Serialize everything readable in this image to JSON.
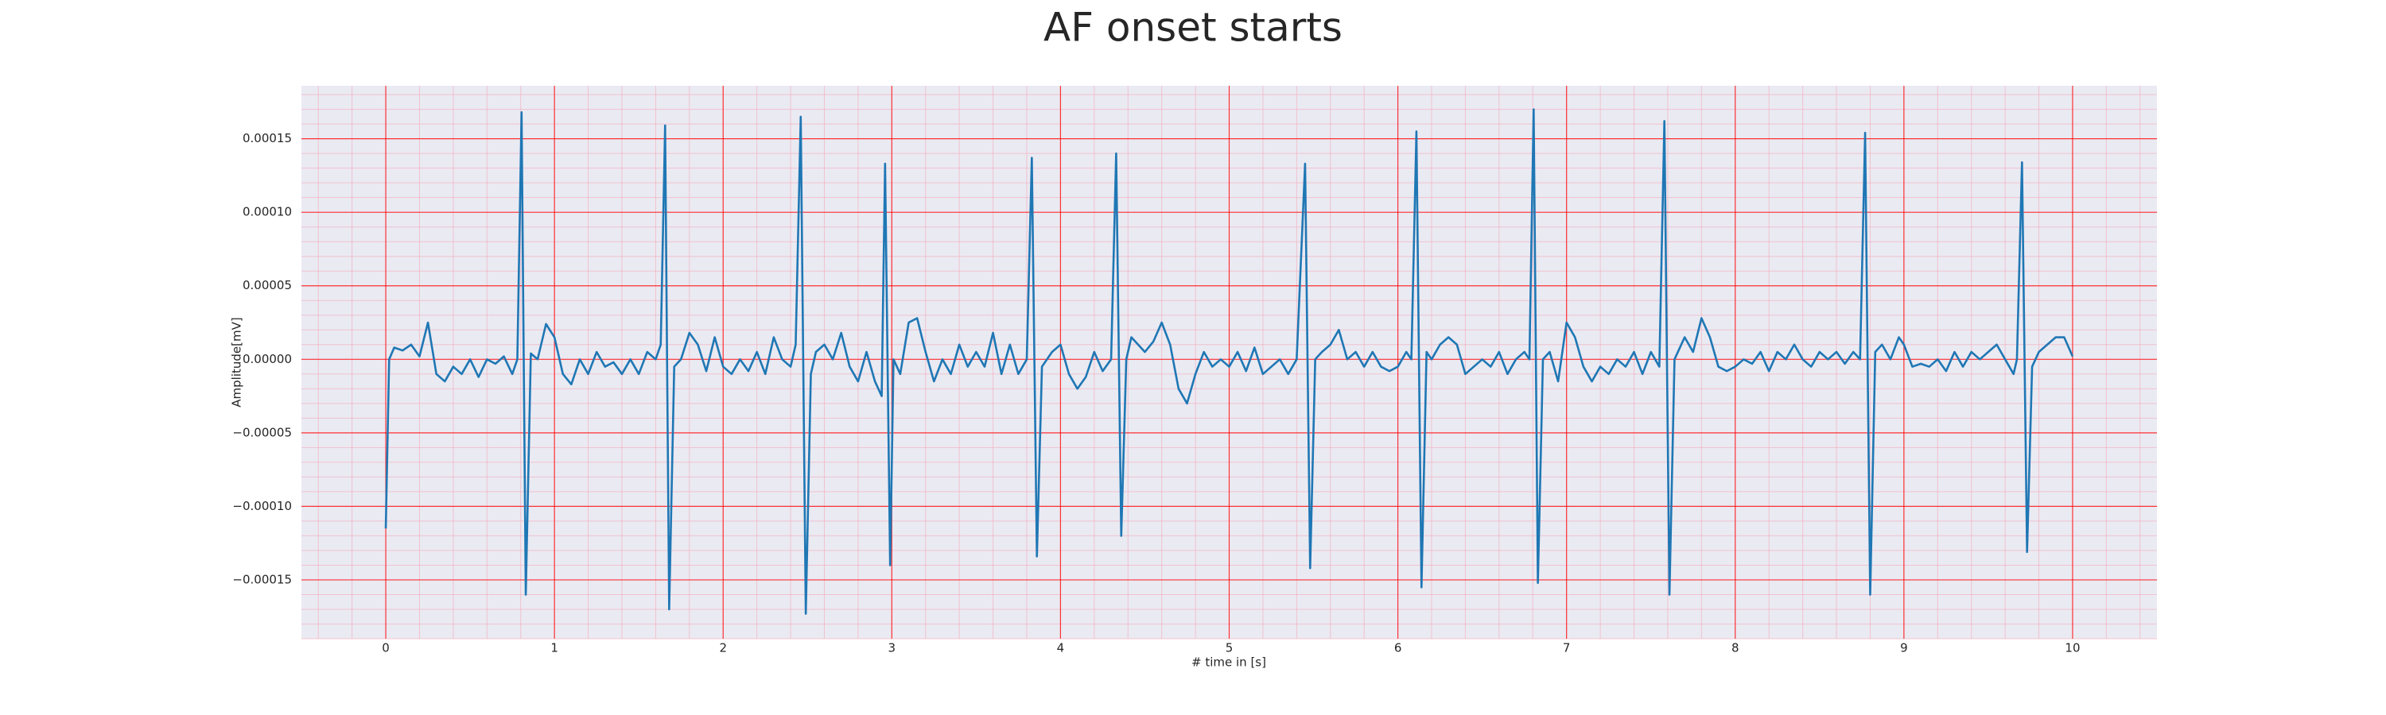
{
  "chart_data": {
    "type": "line",
    "title": "AF onset starts",
    "xlabel": "# time in [s]",
    "ylabel": "Amplitude[mV]",
    "xlim": [
      -0.5,
      10.5
    ],
    "ylim": [
      -0.00019,
      0.000186
    ],
    "xticks": [
      0,
      1,
      2,
      3,
      4,
      5,
      6,
      7,
      8,
      9,
      10
    ],
    "yticks": [
      {
        "value": -0.00015,
        "label": "−0.00015"
      },
      {
        "value": -0.0001,
        "label": "−0.00010"
      },
      {
        "value": -5e-05,
        "label": "−0.00005"
      },
      {
        "value": 0,
        "label": "0.00000"
      },
      {
        "value": 5e-05,
        "label": "0.00005"
      },
      {
        "value": 0.0001,
        "label": "0.00010"
      },
      {
        "value": 0.00015,
        "label": "0.00015"
      }
    ],
    "grid": true,
    "grid_color": "#ff0000",
    "minor_grid": true,
    "minor_grid_color": "#f4a6b8",
    "background": "#eaeaf2",
    "x": [
      0,
      0.02,
      0.05,
      0.1,
      0.15,
      0.2,
      0.25,
      0.3,
      0.35,
      0.4,
      0.45,
      0.5,
      0.55,
      0.6,
      0.65,
      0.7,
      0.75,
      0.78,
      0.805,
      0.83,
      0.86,
      0.9,
      0.95,
      1.0,
      1.05,
      1.1,
      1.15,
      1.2,
      1.25,
      1.3,
      1.35,
      1.4,
      1.45,
      1.5,
      1.55,
      1.6,
      1.63,
      1.656,
      1.68,
      1.71,
      1.75,
      1.8,
      1.85,
      1.9,
      1.95,
      2.0,
      2.05,
      2.1,
      2.15,
      2.2,
      2.25,
      2.3,
      2.35,
      2.4,
      2.43,
      2.46,
      2.49,
      2.52,
      2.55,
      2.6,
      2.65,
      2.7,
      2.75,
      2.8,
      2.85,
      2.9,
      2.94,
      2.96,
      2.99,
      3.01,
      3.05,
      3.1,
      3.15,
      3.2,
      3.25,
      3.3,
      3.35,
      3.4,
      3.45,
      3.5,
      3.55,
      3.6,
      3.65,
      3.7,
      3.75,
      3.8,
      3.83,
      3.86,
      3.89,
      3.95,
      4.0,
      4.05,
      4.1,
      4.15,
      4.2,
      4.25,
      4.3,
      4.33,
      4.36,
      4.39,
      4.42,
      4.5,
      4.55,
      4.6,
      4.65,
      4.7,
      4.75,
      4.8,
      4.85,
      4.9,
      4.95,
      5.0,
      5.05,
      5.1,
      5.15,
      5.2,
      5.25,
      5.3,
      5.35,
      5.4,
      5.45,
      5.48,
      5.51,
      5.55,
      5.6,
      5.65,
      5.7,
      5.75,
      5.8,
      5.85,
      5.9,
      5.95,
      6.0,
      6.05,
      6.08,
      6.11,
      6.14,
      6.17,
      6.2,
      6.25,
      6.3,
      6.35,
      6.4,
      6.45,
      6.5,
      6.55,
      6.6,
      6.65,
      6.7,
      6.75,
      6.78,
      6.805,
      6.83,
      6.86,
      6.9,
      6.95,
      7.0,
      7.05,
      7.1,
      7.15,
      7.2,
      7.25,
      7.3,
      7.35,
      7.4,
      7.45,
      7.5,
      7.55,
      7.58,
      7.61,
      7.64,
      7.7,
      7.75,
      7.8,
      7.85,
      7.9,
      7.95,
      8.0,
      8.05,
      8.1,
      8.15,
      8.2,
      8.25,
      8.3,
      8.35,
      8.4,
      8.45,
      8.5,
      8.55,
      8.6,
      8.65,
      8.7,
      8.74,
      8.77,
      8.8,
      8.83,
      8.87,
      8.92,
      8.97,
      9.0,
      9.05,
      9.1,
      9.15,
      9.2,
      9.25,
      9.3,
      9.35,
      9.4,
      9.45,
      9.5,
      9.55,
      9.6,
      9.65,
      9.67,
      9.7,
      9.73,
      9.76,
      9.8,
      9.85,
      9.9,
      9.95,
      10.0
    ],
    "series": [
      {
        "color": "#1f77b4",
        "values": [
          -0.000115,
          0,
          8e-06,
          6e-06,
          1e-05,
          2e-06,
          2.5e-05,
          -1e-05,
          -1.5e-05,
          -5e-06,
          -1e-05,
          0,
          -1.2e-05,
          0,
          -3e-06,
          2e-06,
          -1e-05,
          0,
          0.000168,
          -0.00016,
          4e-06,
          0,
          2.4e-05,
          1.5e-05,
          -1e-05,
          -1.7e-05,
          0,
          -1e-05,
          5e-06,
          -5e-06,
          -2e-06,
          -1e-05,
          0,
          -1e-05,
          5e-06,
          0,
          1e-05,
          0.000159,
          -0.00017,
          -5e-06,
          0,
          1.8e-05,
          1e-05,
          -8e-06,
          1.5e-05,
          -5e-06,
          -1e-05,
          0,
          -8e-06,
          5e-06,
          -1e-05,
          1.5e-05,
          0,
          -5e-06,
          1e-05,
          0.000165,
          -0.000173,
          -1e-05,
          5e-06,
          1e-05,
          0,
          1.8e-05,
          -5e-06,
          -1.5e-05,
          5e-06,
          -1.5e-05,
          -2.5e-05,
          0.000133,
          -0.00014,
          0,
          -1e-05,
          2.5e-05,
          2.8e-05,
          5e-06,
          -1.5e-05,
          0,
          -1e-05,
          1e-05,
          -5e-06,
          5e-06,
          -5e-06,
          1.8e-05,
          -1e-05,
          1e-05,
          -1e-05,
          0,
          0.000137,
          -0.000134,
          -5e-06,
          5e-06,
          1e-05,
          -1e-05,
          -2e-05,
          -1.2e-05,
          5e-06,
          -8e-06,
          0,
          0.00014,
          -0.00012,
          0,
          1.5e-05,
          5e-06,
          1.2e-05,
          2.5e-05,
          1e-05,
          -2e-05,
          -3e-05,
          -1e-05,
          5e-06,
          -5e-06,
          0,
          -5e-06,
          5e-06,
          -8e-06,
          8e-06,
          -1e-05,
          -5e-06,
          0,
          -1e-05,
          0,
          0.000133,
          -0.000142,
          0,
          5e-06,
          1e-05,
          2e-05,
          0,
          5e-06,
          -5e-06,
          5e-06,
          -5e-06,
          -8e-06,
          -5e-06,
          5e-06,
          0,
          0.000155,
          -0.000155,
          5e-06,
          0,
          1e-05,
          1.5e-05,
          1e-05,
          -1e-05,
          -5e-06,
          0,
          -5e-06,
          5e-06,
          -1e-05,
          0,
          5e-06,
          0,
          0.00017,
          -0.000152,
          0,
          5e-06,
          -1.5e-05,
          2.5e-05,
          1.5e-05,
          -5e-06,
          -1.5e-05,
          -5e-06,
          -1e-05,
          0,
          -5e-06,
          5e-06,
          -1e-05,
          5e-06,
          -5e-06,
          0.000162,
          -0.00016,
          0,
          1.5e-05,
          5e-06,
          2.8e-05,
          1.5e-05,
          -5e-06,
          -8e-06,
          -5e-06,
          0,
          -3e-06,
          5e-06,
          -8e-06,
          5e-06,
          0,
          1e-05,
          0,
          -5e-06,
          5e-06,
          0,
          5e-06,
          -3e-06,
          5e-06,
          0,
          0.000154,
          -0.00016,
          5e-06,
          1e-05,
          0,
          1.5e-05,
          1e-05,
          -5e-06,
          -3e-06,
          -5e-06,
          0,
          -8e-06,
          5e-06,
          -5e-06,
          5e-06,
          0,
          5e-06,
          1e-05,
          0,
          -1e-05,
          0,
          0.000134,
          -0.000131,
          -5e-06,
          5e-06,
          1e-05,
          1.5e-05,
          1.5e-05,
          2e-06
        ]
      }
    ]
  }
}
